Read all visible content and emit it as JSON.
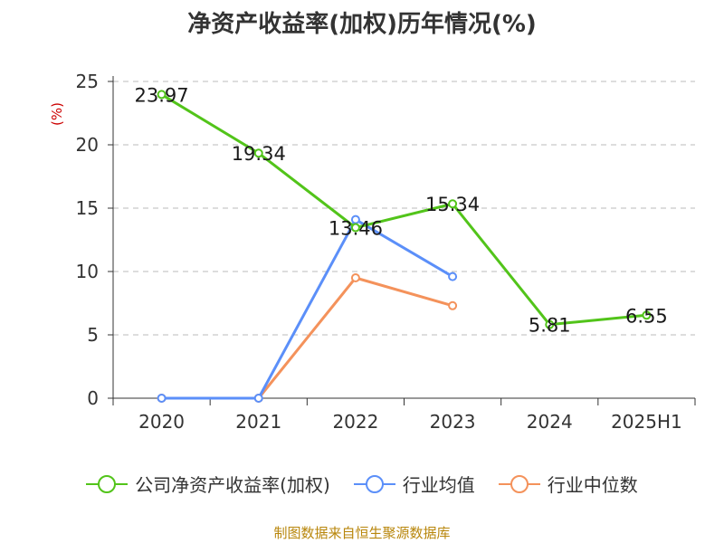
{
  "chart_data": {
    "type": "line",
    "title": "净资产收益率(加权)历年情况(%)",
    "ylabel": "(%)",
    "categories": [
      "2020",
      "2021",
      "2022",
      "2023",
      "2024",
      "2025H1"
    ],
    "ylim": [
      0,
      25
    ],
    "yticks": [
      0,
      5,
      10,
      15,
      20,
      25
    ],
    "grid": true,
    "legend_position": "bottom",
    "series": [
      {
        "name": "公司净资产收益率(加权)",
        "color": "#52c41a",
        "values": [
          23.97,
          19.34,
          13.46,
          15.34,
          5.81,
          6.55
        ],
        "labels": [
          "23.97",
          "19.34",
          "13.46",
          "15.34",
          "5.81",
          "6.55"
        ]
      },
      {
        "name": "行业均值",
        "color": "#5b8ff9",
        "values": [
          0,
          0,
          14.1,
          9.6,
          null,
          null
        ]
      },
      {
        "name": "行业中位数",
        "color": "#f4925b",
        "values": [
          0,
          0,
          9.5,
          7.3,
          null,
          null
        ]
      }
    ]
  },
  "source": "制图数据来自恒生聚源数据库"
}
